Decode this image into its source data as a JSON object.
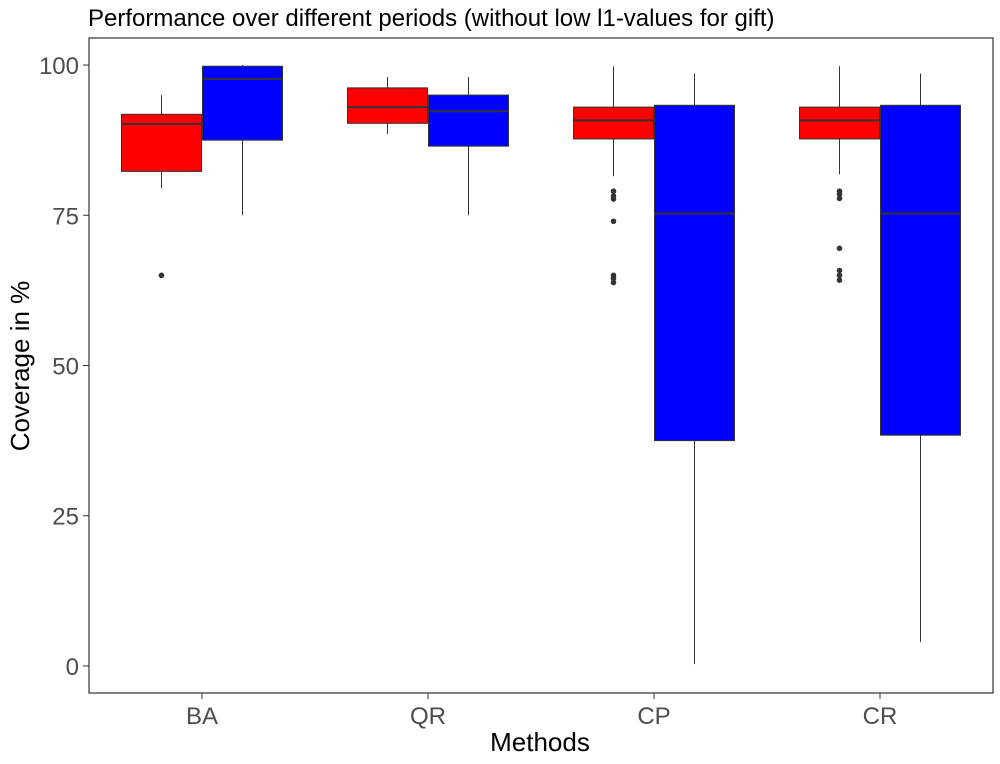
{
  "chart_data": {
    "type": "boxplot",
    "title": "Performance over different periods (without low l1-values for gift)",
    "xlabel": "Methods",
    "ylabel": "Coverage in %",
    "ylim": [
      -4.5,
      104.5
    ],
    "y_ticks": [
      0,
      25,
      50,
      75,
      100
    ],
    "categories": [
      "BA",
      "QR",
      "CP",
      "CR"
    ],
    "grid": false,
    "legend": "none",
    "series": [
      {
        "color": "#ff0000",
        "boxes": [
          {
            "category": "BA",
            "whisker_low": 79.5,
            "q1": 82.3,
            "median": 90.2,
            "q3": 91.8,
            "whisker_high": 95.0,
            "outliers": [
              65.0
            ]
          },
          {
            "category": "QR",
            "whisker_low": 88.5,
            "q1": 90.3,
            "median": 93.0,
            "q3": 96.2,
            "whisker_high": 98.0,
            "outliers": []
          },
          {
            "category": "CP",
            "whisker_low": 81.5,
            "q1": 87.7,
            "median": 90.8,
            "q3": 93.0,
            "whisker_high": 99.8,
            "outliers": [
              79.0,
              78.2,
              77.7,
              74.0,
              65.0,
              64.5,
              63.8
            ]
          },
          {
            "category": "CR",
            "whisker_low": 81.8,
            "q1": 87.7,
            "median": 90.8,
            "q3": 93.0,
            "whisker_high": 99.8,
            "outliers": [
              79.0,
              78.5,
              77.8,
              69.5,
              65.8,
              65.0,
              64.2
            ]
          }
        ]
      },
      {
        "color": "#0000ff",
        "boxes": [
          {
            "category": "BA",
            "whisker_low": 75.0,
            "q1": 87.5,
            "median": 97.7,
            "q3": 99.8,
            "whisker_high": 100.0,
            "outliers": []
          },
          {
            "category": "QR",
            "whisker_low": 75.0,
            "q1": 86.5,
            "median": 92.3,
            "q3": 95.0,
            "whisker_high": 98.0,
            "outliers": []
          },
          {
            "category": "CP",
            "whisker_low": 0.3,
            "q1": 37.5,
            "median": 75.3,
            "q3": 93.3,
            "whisker_high": 98.6,
            "outliers": []
          },
          {
            "category": "CR",
            "whisker_low": 4.0,
            "q1": 38.4,
            "median": 75.3,
            "q3": 93.3,
            "whisker_high": 98.6,
            "outliers": []
          }
        ]
      }
    ]
  }
}
